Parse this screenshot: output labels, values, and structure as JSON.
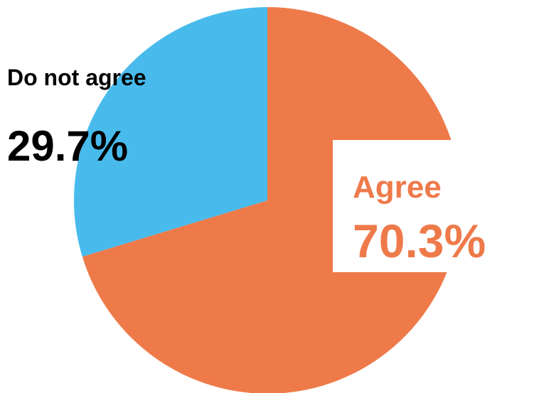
{
  "chart_data": {
    "type": "pie",
    "title": "",
    "start_angle_deg": 0,
    "direction": "clockwise",
    "slices": [
      {
        "label": "Agree",
        "value": 70.3,
        "value_label": "70.3%",
        "color": "#ee7a4a"
      },
      {
        "label": "Do not agree",
        "value": 29.7,
        "value_label": "29.7%",
        "color": "#48bbec"
      }
    ]
  },
  "colors": {
    "background": "#ffffff",
    "agree_text": "#ee7a4a",
    "disagree_text": "#000000",
    "agree_label_box": "#ffffff"
  }
}
